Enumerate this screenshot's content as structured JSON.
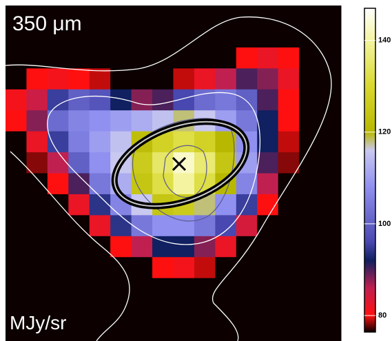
{
  "chart_data": {
    "type": "heatmap",
    "title": "350 μm",
    "unit_label": "MJy/sr",
    "colorbar_lim": [
      76.4,
      147
    ],
    "colorbar_ticks": [
      80,
      100,
      120,
      140
    ],
    "colormap": [
      [
        76,
        "#0c0000"
      ],
      [
        80,
        "#ff1010"
      ],
      [
        86,
        "#c02050"
      ],
      [
        92,
        "#102060"
      ],
      [
        96,
        "#4848b0"
      ],
      [
        108,
        "#9090f0"
      ],
      [
        116,
        "#c8c8f0"
      ],
      [
        120,
        "#b8b800"
      ],
      [
        130,
        "#d8d830"
      ],
      [
        140,
        "#f4f4a0"
      ],
      [
        147,
        "#ffffff"
      ]
    ],
    "values": [
      [
        76,
        76,
        76,
        76,
        76,
        76,
        76,
        76,
        76,
        76,
        76,
        76,
        76,
        76,
        76,
        76
      ],
      [
        76,
        76,
        76,
        76,
        76,
        76,
        76,
        76,
        76,
        76,
        76,
        76,
        76,
        76,
        76,
        76
      ],
      [
        76,
        76,
        76,
        76,
        76,
        76,
        76,
        76,
        76,
        76,
        76,
        80,
        82,
        80,
        76,
        76
      ],
      [
        76,
        80,
        81,
        80,
        79,
        76,
        76,
        76,
        79,
        82,
        86,
        90,
        88,
        82,
        76,
        76
      ],
      [
        81,
        85,
        95,
        100,
        98,
        92,
        88,
        90,
        96,
        102,
        104,
        100,
        90,
        80,
        76,
        76
      ],
      [
        80,
        88,
        102,
        106,
        108,
        110,
        112,
        115,
        118,
        116,
        110,
        104,
        92,
        80,
        76,
        76
      ],
      [
        76,
        82,
        95,
        105,
        110,
        115,
        122,
        128,
        132,
        128,
        120,
        108,
        92,
        79,
        76,
        76
      ],
      [
        76,
        78,
        86,
        100,
        108,
        116,
        126,
        135,
        143,
        136,
        124,
        110,
        90,
        78,
        76,
        76
      ],
      [
        76,
        76,
        80,
        90,
        104,
        112,
        124,
        132,
        140,
        132,
        120,
        106,
        86,
        76,
        76,
        76
      ],
      [
        76,
        76,
        76,
        82,
        94,
        106,
        116,
        124,
        126,
        118,
        108,
        95,
        80,
        76,
        76,
        76
      ],
      [
        76,
        76,
        76,
        76,
        82,
        94,
        104,
        108,
        108,
        104,
        96,
        84,
        76,
        76,
        76,
        76
      ],
      [
        76,
        76,
        76,
        76,
        76,
        80,
        86,
        92,
        92,
        88,
        82,
        76,
        76,
        76,
        76,
        76
      ],
      [
        76,
        76,
        76,
        76,
        76,
        76,
        76,
        80,
        81,
        79,
        76,
        76,
        76,
        76,
        76,
        76
      ],
      [
        76,
        76,
        76,
        76,
        76,
        76,
        76,
        76,
        76,
        76,
        76,
        76,
        76,
        76,
        76,
        76
      ],
      [
        76,
        76,
        76,
        76,
        76,
        76,
        76,
        76,
        76,
        76,
        76,
        76,
        76,
        76,
        76,
        76
      ],
      [
        76,
        76,
        76,
        76,
        76,
        76,
        76,
        76,
        76,
        76,
        76,
        76,
        76,
        76,
        76,
        76
      ]
    ]
  }
}
